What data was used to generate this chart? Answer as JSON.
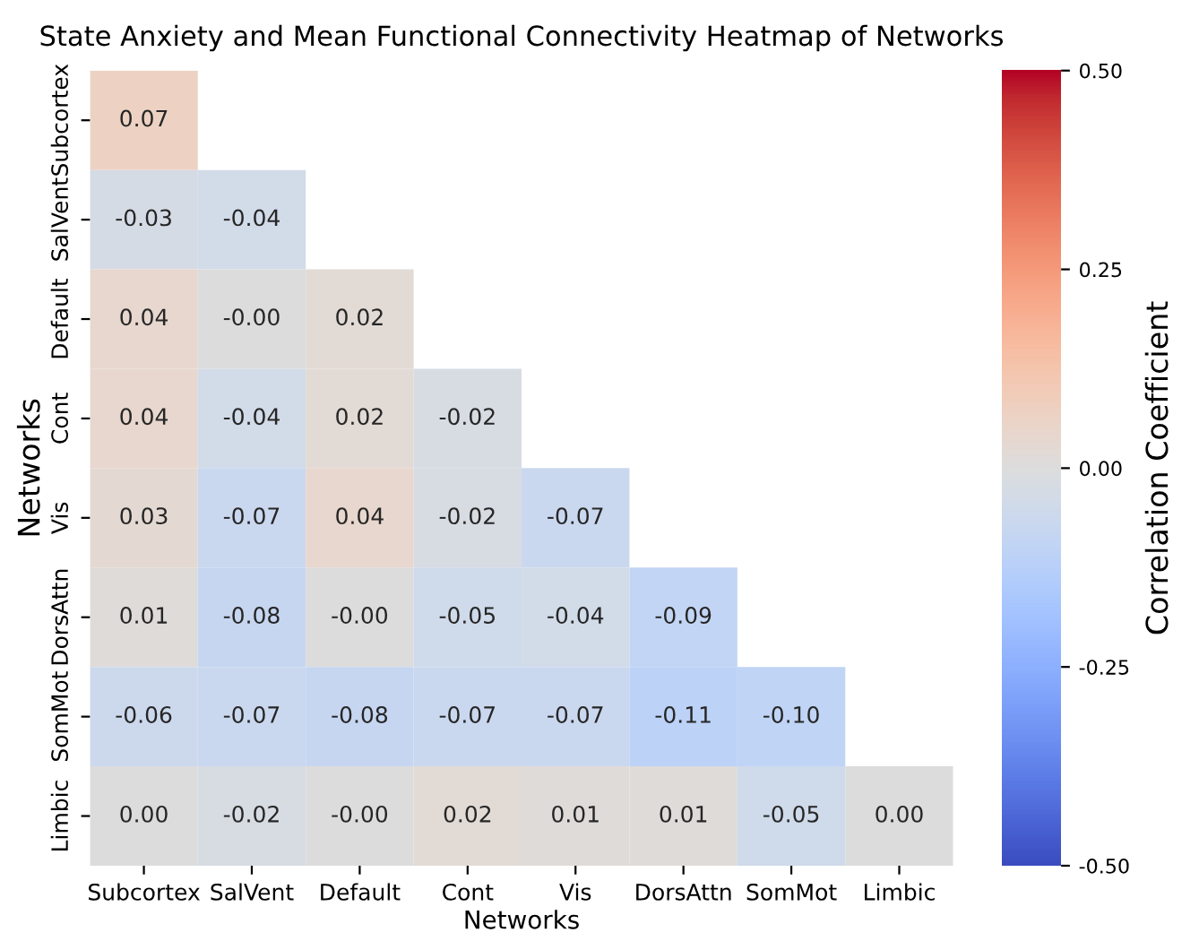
{
  "chart_data": {
    "type": "heatmap",
    "title": "State Anxiety and Mean Functional Connectivity Heatmap of Networks",
    "xlabel": "Networks",
    "ylabel": "Networks",
    "clabel": "Correlation Coefficient",
    "categories": [
      "Subcortex",
      "SalVent",
      "Default",
      "Cont",
      "Vis",
      "DorsAttn",
      "SomMot",
      "Limbic"
    ],
    "y_categories": [
      "Subcortex",
      "SalVent",
      "Default",
      "Cont",
      "Vis",
      "DorsAttn",
      "SomMot",
      "Limbic"
    ],
    "cells": [
      [
        0.07,
        null,
        null,
        null,
        null,
        null,
        null,
        null
      ],
      [
        -0.03,
        -0.04,
        null,
        null,
        null,
        null,
        null,
        null
      ],
      [
        0.04,
        -0.0,
        0.02,
        null,
        null,
        null,
        null,
        null
      ],
      [
        0.04,
        -0.04,
        0.02,
        -0.02,
        null,
        null,
        null,
        null
      ],
      [
        0.03,
        -0.07,
        0.04,
        -0.02,
        -0.07,
        null,
        null,
        null
      ],
      [
        0.01,
        -0.08,
        -0.0,
        -0.05,
        -0.04,
        -0.09,
        null,
        null
      ],
      [
        -0.06,
        -0.07,
        -0.08,
        -0.07,
        -0.07,
        -0.11,
        -0.1,
        null
      ],
      [
        0.0,
        -0.02,
        -0.0,
        0.02,
        0.01,
        0.01,
        -0.05,
        0.0
      ]
    ],
    "cell_labels": [
      [
        "0.07",
        null,
        null,
        null,
        null,
        null,
        null,
        null
      ],
      [
        "-0.03",
        "-0.04",
        null,
        null,
        null,
        null,
        null,
        null
      ],
      [
        "0.04",
        "-0.00",
        "0.02",
        null,
        null,
        null,
        null,
        null
      ],
      [
        "0.04",
        "-0.04",
        "0.02",
        "-0.02",
        null,
        null,
        null,
        null
      ],
      [
        "0.03",
        "-0.07",
        "0.04",
        "-0.02",
        "-0.07",
        null,
        null,
        null
      ],
      [
        "0.01",
        "-0.08",
        "-0.00",
        "-0.05",
        "-0.04",
        "-0.09",
        null,
        null
      ],
      [
        "-0.06",
        "-0.07",
        "-0.08",
        "-0.07",
        "-0.07",
        "-0.11",
        "-0.10",
        null
      ],
      [
        "0.00",
        "-0.02",
        "-0.00",
        "0.02",
        "0.01",
        "0.01",
        "-0.05",
        "0.00"
      ]
    ],
    "clim": [
      -0.5,
      0.5
    ],
    "cticks": [
      {
        "value": -0.5,
        "label": "-0.50"
      },
      {
        "value": -0.25,
        "label": "-0.25"
      },
      {
        "value": 0.0,
        "label": "0.00"
      },
      {
        "value": 0.25,
        "label": "0.25"
      },
      {
        "value": 0.5,
        "label": "0.50"
      }
    ],
    "grid": false
  }
}
